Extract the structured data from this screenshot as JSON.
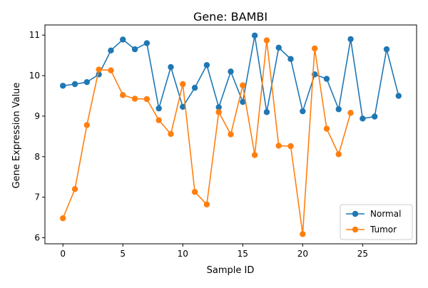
{
  "chart_data": {
    "type": "line",
    "title": "Gene: BAMBI",
    "xlabel": "Sample ID",
    "ylabel": "Gene Expression Value",
    "xlim": [
      -1.5,
      29.5
    ],
    "ylim": [
      5.85,
      11.25
    ],
    "xticks": [
      0,
      5,
      10,
      15,
      20,
      25
    ],
    "yticks": [
      6,
      7,
      8,
      9,
      10,
      11
    ],
    "grid": false,
    "legend": {
      "position": "lower-right"
    },
    "series": [
      {
        "name": "Normal",
        "color": "#1f77b4",
        "marker": "circle",
        "x": [
          0,
          1,
          2,
          3,
          4,
          5,
          6,
          7,
          8,
          9,
          10,
          11,
          12,
          13,
          14,
          15,
          16,
          17,
          18,
          19,
          20,
          21,
          22,
          23,
          24,
          25,
          26,
          27,
          28
        ],
        "y": [
          9.75,
          9.79,
          9.84,
          10.03,
          10.62,
          10.89,
          10.65,
          10.8,
          9.19,
          10.21,
          9.23,
          9.7,
          10.26,
          9.22,
          10.1,
          9.35,
          10.99,
          9.1,
          10.69,
          10.41,
          9.12,
          10.03,
          9.92,
          9.17,
          10.9,
          8.94,
          8.99,
          10.65,
          9.5
        ]
      },
      {
        "name": "Tumor",
        "color": "#ff7f0e",
        "marker": "circle",
        "x": [
          0,
          1,
          2,
          3,
          4,
          5,
          6,
          7,
          8,
          9,
          10,
          11,
          12,
          13,
          14,
          15,
          16,
          17,
          18,
          19,
          20,
          21,
          22,
          23,
          24
        ],
        "y": [
          6.48,
          7.2,
          8.78,
          10.15,
          10.13,
          9.52,
          9.43,
          9.42,
          8.9,
          8.56,
          9.79,
          7.13,
          6.82,
          9.1,
          8.55,
          9.76,
          8.04,
          10.87,
          8.27,
          8.26,
          6.09,
          10.67,
          8.69,
          8.06,
          9.08
        ]
      }
    ]
  }
}
